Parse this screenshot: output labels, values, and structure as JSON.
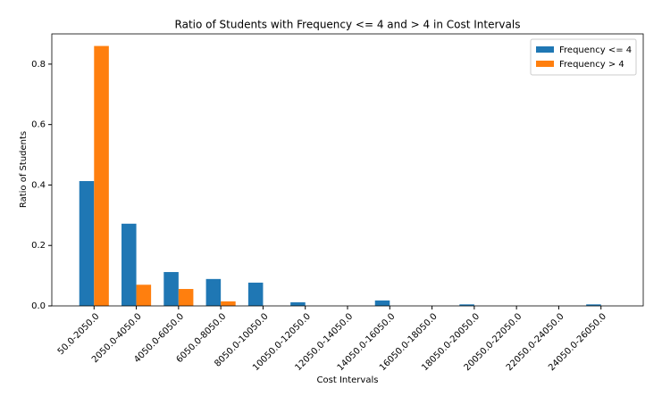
{
  "chart_data": {
    "type": "bar",
    "title": "Ratio of Students with Frequency <= 4 and > 4 in Cost Intervals",
    "x_label": "Cost Intervals",
    "y_label": "Ratio of Students",
    "categories": [
      "50.0-2050.0",
      "2050.0-4050.0",
      "4050.0-6050.0",
      "6050.0-8050.0",
      "8050.0-10050.0",
      "10050.0-12050.0",
      "12050.0-14050.0",
      "14050.0-16050.0",
      "16050.0-18050.0",
      "18050.0-20050.0",
      "20050.0-22050.0",
      "22050.0-24050.0",
      "24050.0-26050.0"
    ],
    "series": [
      {
        "name": "Frequency <= 4",
        "color": "#1f77b4",
        "values": [
          0.413,
          0.272,
          0.112,
          0.089,
          0.077,
          0.012,
          0,
          0.018,
          0,
          0.005,
          0,
          0,
          0.005
        ]
      },
      {
        "name": "Frequency > 4",
        "color": "#ff7f0e",
        "values": [
          0.86,
          0.07,
          0.056,
          0.015,
          0,
          0,
          0,
          0,
          0,
          0,
          0,
          0,
          0
        ]
      }
    ],
    "ylim": [
      0,
      0.9
    ],
    "yticks": [
      {
        "value": 0,
        "label": "0.0"
      },
      0.2,
      0.4,
      0.6,
      0.8
    ],
    "grid": false,
    "legend": "upper right"
  }
}
